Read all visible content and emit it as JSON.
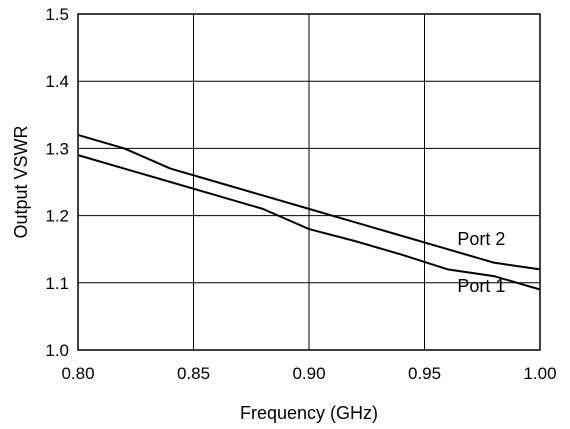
{
  "chart_data": {
    "type": "line",
    "title": "",
    "xlabel": "Frequency (GHz)",
    "ylabel": "Output VSWR",
    "xlim": [
      0.8,
      1.0
    ],
    "ylim": [
      1.0,
      1.5
    ],
    "x_ticks": [
      "0.80",
      "0.85",
      "0.90",
      "0.95",
      "1.00"
    ],
    "y_ticks": [
      "1.0",
      "1.1",
      "1.2",
      "1.3",
      "1.4",
      "1.5"
    ],
    "grid": true,
    "legend": "none",
    "line_color": "#000000",
    "series": [
      {
        "name": "Port 1",
        "x": [
          0.8,
          0.82,
          0.84,
          0.86,
          0.88,
          0.9,
          0.92,
          0.94,
          0.96,
          0.98,
          1.0
        ],
        "y": [
          1.29,
          1.27,
          1.25,
          1.23,
          1.21,
          1.18,
          1.162,
          1.142,
          1.12,
          1.11,
          1.09
        ],
        "label_at": [
          0.985,
          1.095
        ]
      },
      {
        "name": "Port 2",
        "x": [
          0.8,
          0.82,
          0.84,
          0.86,
          0.88,
          0.9,
          0.92,
          0.94,
          0.96,
          0.98,
          1.0
        ],
        "y": [
          1.32,
          1.3,
          1.27,
          1.25,
          1.23,
          1.21,
          1.19,
          1.17,
          1.15,
          1.13,
          1.12
        ],
        "label_at": [
          0.985,
          1.165
        ]
      }
    ]
  }
}
